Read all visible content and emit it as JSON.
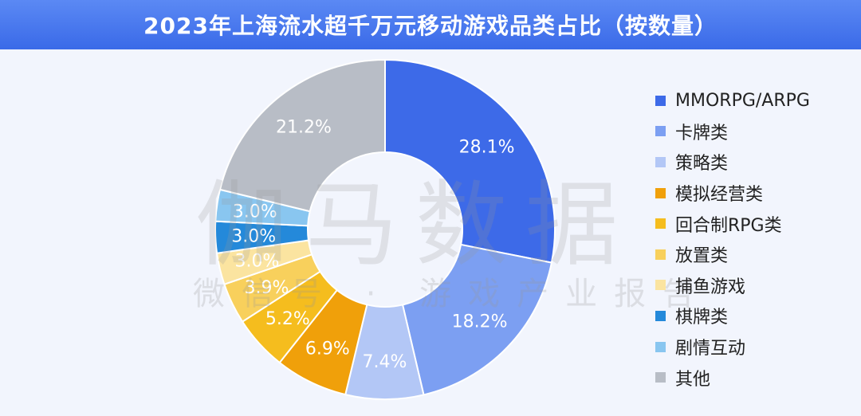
{
  "title": "2023年上海流水超千万元移动游戏品类占比（按数量）",
  "watermark": {
    "main": "伽马数据",
    "sub": "微信号 · 游戏产业报告"
  },
  "chart_data": {
    "type": "pie",
    "donut": true,
    "legend_position": "right",
    "slices": [
      {
        "name": "MMORPG/ARPG",
        "value": 28.1,
        "label": "28.1%",
        "color": "#3d6ae8"
      },
      {
        "name": "卡牌类",
        "value": 18.2,
        "label": "18.2%",
        "color": "#7c9ff2"
      },
      {
        "name": "策略类",
        "value": 7.4,
        "label": "7.4%",
        "color": "#b3c7f6"
      },
      {
        "name": "模拟经营类",
        "value": 6.9,
        "label": "6.9%",
        "color": "#f0a00a"
      },
      {
        "name": "回合制RPG类",
        "value": 5.2,
        "label": "5.2%",
        "color": "#f5bd1e"
      },
      {
        "name": "放置类",
        "value": 3.9,
        "label": "3.9%",
        "color": "#f8d05c"
      },
      {
        "name": "捕鱼游戏",
        "value": 3.0,
        "label": "3.0%",
        "color": "#fbe4a0"
      },
      {
        "name": "棋牌类",
        "value": 3.0,
        "label": "3.0%",
        "color": "#2489da"
      },
      {
        "name": "剧情互动",
        "value": 3.0,
        "label": "3.0%",
        "color": "#89c6f0"
      },
      {
        "name": "其他",
        "value": 21.2,
        "label": "21.2%",
        "color": "#b8bdc6"
      }
    ]
  }
}
